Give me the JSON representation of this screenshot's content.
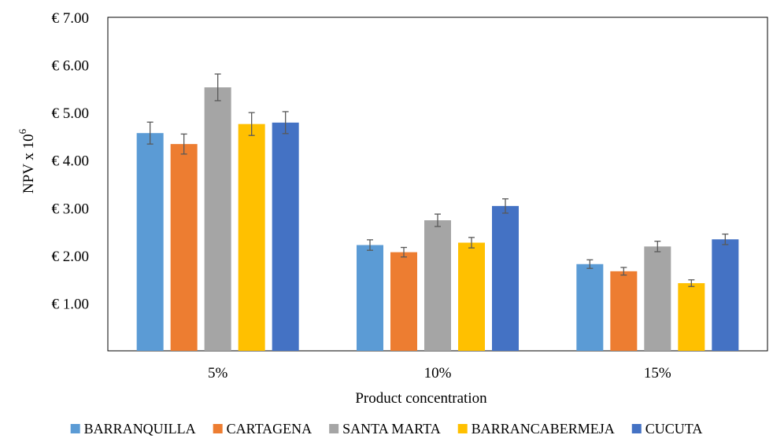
{
  "chart_data": {
    "type": "bar",
    "categories": [
      "5%",
      "10%",
      "15%"
    ],
    "xlabel": "Product concentration",
    "ylabel": "NPV x 10",
    "ylabel_superscript": "6",
    "ylim": [
      0,
      7
    ],
    "yticks": [
      1,
      2,
      3,
      4,
      5,
      6,
      7
    ],
    "ytick_labels": [
      "€ 1.00",
      "€ 2.00",
      "€ 3.00",
      "€ 4.00",
      "€ 5.00",
      "€ 6.00",
      "€ 7.00"
    ],
    "grid": false,
    "legend_position": "bottom",
    "error_bars": true,
    "series": [
      {
        "name": "BARRANQUILLA",
        "color": "#5B9BD5",
        "values": [
          4.57,
          2.22,
          1.82
        ],
        "errors": [
          0.23,
          0.11,
          0.09
        ]
      },
      {
        "name": "CARTAGENA",
        "color": "#ED7D31",
        "values": [
          4.34,
          2.07,
          1.67
        ],
        "errors": [
          0.21,
          0.1,
          0.08
        ]
      },
      {
        "name": "SANTA MARTA",
        "color": "#A5A5A5",
        "values": [
          5.53,
          2.74,
          2.19
        ],
        "errors": [
          0.28,
          0.13,
          0.11
        ]
      },
      {
        "name": "BARRANCABERMEJA",
        "color": "#FFC000",
        "values": [
          4.76,
          2.27,
          1.42
        ],
        "errors": [
          0.24,
          0.11,
          0.07
        ]
      },
      {
        "name": "CUCUTA",
        "color": "#4472C4",
        "values": [
          4.79,
          3.04,
          2.34
        ],
        "errors": [
          0.23,
          0.15,
          0.11
        ]
      }
    ]
  }
}
